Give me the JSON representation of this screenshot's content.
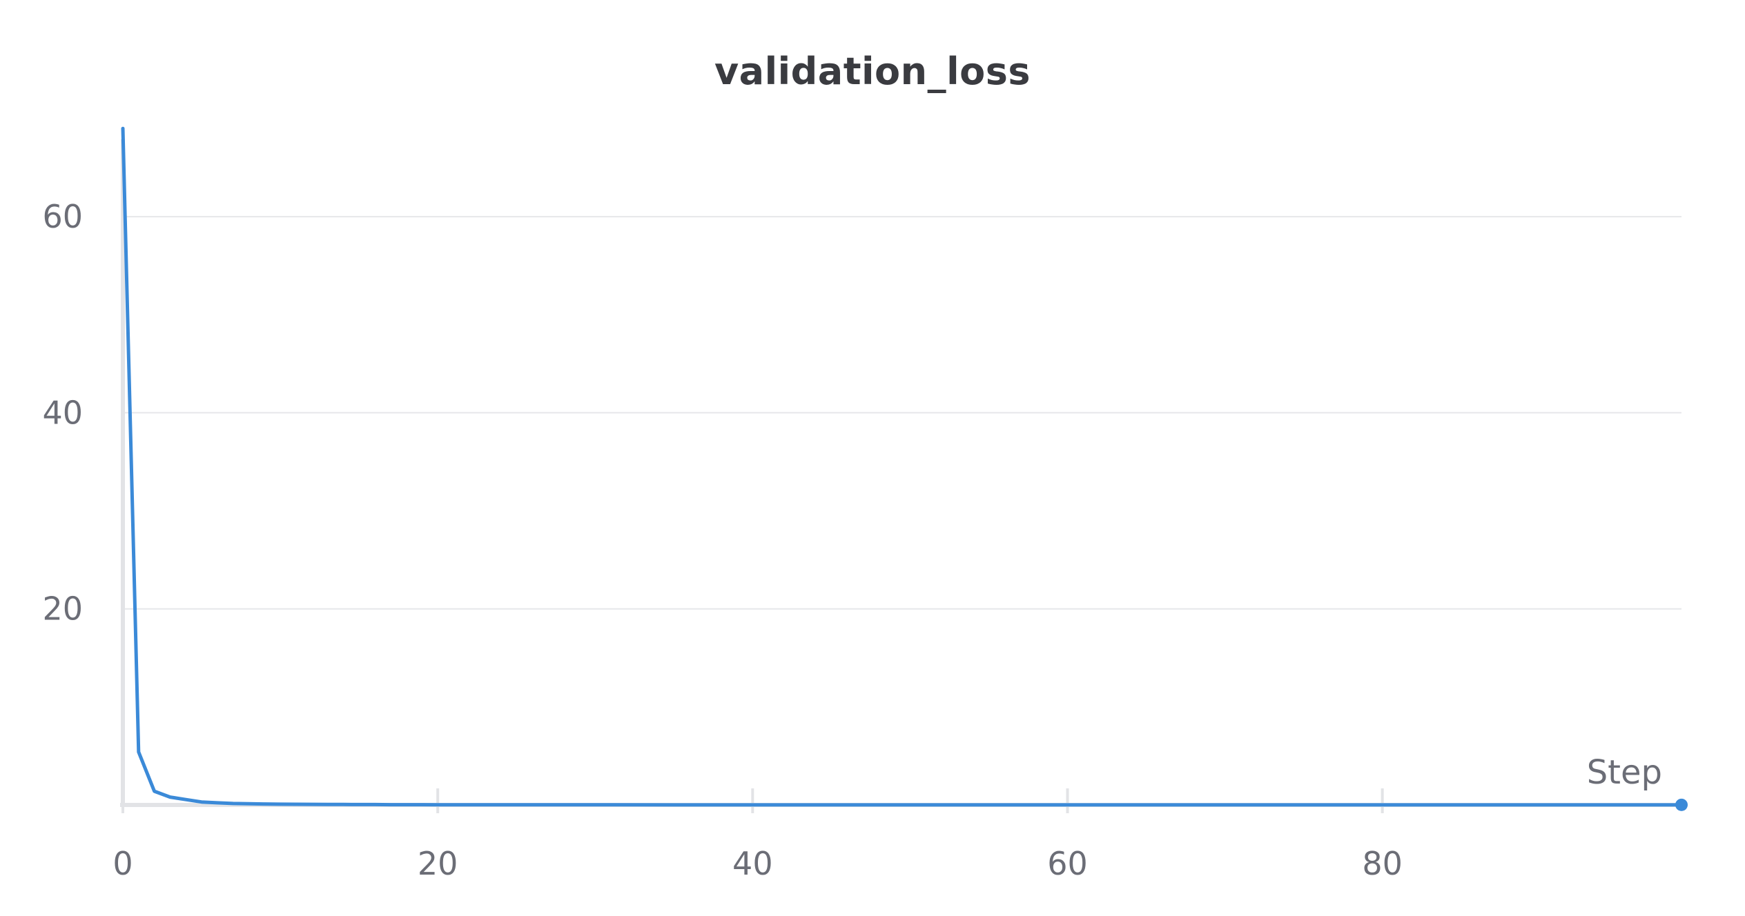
{
  "chart_data": {
    "type": "line",
    "title": "validation_loss",
    "xlabel": "Step",
    "ylabel": "",
    "xlim": [
      0,
      99
    ],
    "ylim": [
      0,
      70
    ],
    "grid": true,
    "x_ticks": [
      0,
      20,
      40,
      60,
      80
    ],
    "y_ticks": [
      20,
      40,
      60
    ],
    "series": [
      {
        "color": "#3b8ad8",
        "x": [
          0,
          1,
          2,
          3,
          4,
          5,
          6,
          7,
          8,
          9,
          10,
          11,
          12,
          13,
          14,
          15,
          16,
          17,
          18,
          19,
          20,
          25,
          30,
          35,
          40,
          45,
          50,
          55,
          60,
          65,
          70,
          75,
          80,
          85,
          90,
          95,
          99
        ],
        "y": [
          69,
          5.4,
          1.4,
          0.8,
          0.55,
          0.3,
          0.22,
          0.15,
          0.12,
          0.1,
          0.08,
          0.07,
          0.06,
          0.05,
          0.05,
          0.04,
          0.04,
          0.03,
          0.03,
          0.03,
          0.02,
          0.02,
          0.02,
          0.01,
          0.01,
          0.01,
          0.01,
          0.01,
          0.01,
          0.01,
          0.01,
          0.01,
          0.01,
          0.01,
          0.01,
          0.01,
          0.01
        ]
      }
    ],
    "last_point_marker": true
  }
}
